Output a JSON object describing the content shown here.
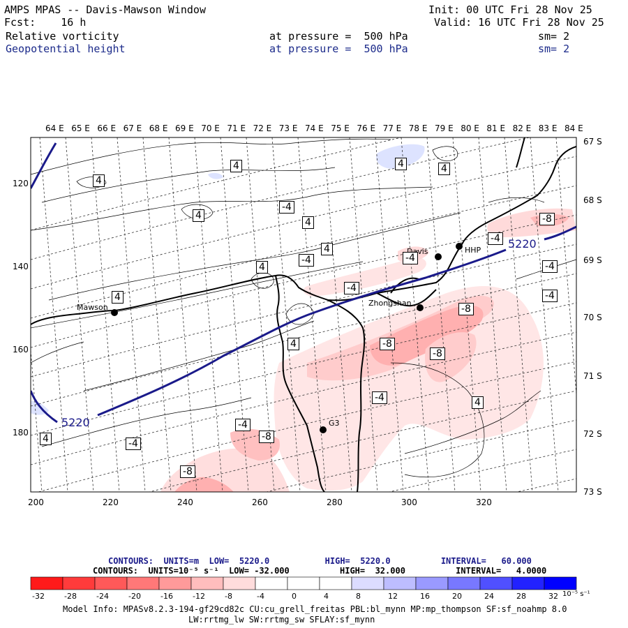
{
  "header": {
    "title": "AMPS MPAS -- Davis-Mawson Window",
    "fcst": "Fcst:    16 h",
    "init": "Init: 00 UTC Fri 28 Nov 25",
    "valid": "Valid: 16 UTC Fri 28 Nov 25",
    "field1": {
      "name": "Relative vorticity",
      "pressure": "at pressure =  500 hPa",
      "sm": "sm= 2"
    },
    "field2": {
      "name": "Geopotential height",
      "pressure": "at pressure =  500 hPa",
      "sm": "sm= 2"
    }
  },
  "axes": {
    "top_labels": [
      "64 E",
      "65 E",
      "66 E",
      "67 E",
      "68 E",
      "69 E",
      "70 E",
      "71 E",
      "72 E",
      "73 E",
      "74 E",
      "75 E",
      "76 E",
      "77 E",
      "78 E",
      "79 E",
      "80 E",
      "81 E",
      "82 E",
      "83 E",
      "84 E"
    ],
    "right_labels": [
      "67 S",
      "68 S",
      "69 S",
      "70 S",
      "71 S",
      "72 S",
      "73 S"
    ],
    "x_ticks": [
      "200",
      "220",
      "240",
      "260",
      "280",
      "300",
      "320"
    ],
    "y_ticks": [
      "120",
      "140",
      "160",
      "180"
    ]
  },
  "stations": [
    {
      "name": "Mawson"
    },
    {
      "name": "Davis"
    },
    {
      "name": "HHP"
    },
    {
      "name": "Zhongshan"
    },
    {
      "name": "G3"
    }
  ],
  "contour_labels": {
    "height": [
      "5220",
      "5220"
    ],
    "vort": [
      "4",
      "4",
      "4",
      "4",
      "4",
      "4",
      "4",
      "4",
      "4",
      "4",
      "-4",
      "-4",
      "-4",
      "-4",
      "-4",
      "-4",
      "-4",
      "-4",
      "-4",
      "-4",
      "-8",
      "-8",
      "-8",
      "-8",
      "-8",
      "-8",
      "4",
      "4"
    ]
  },
  "footer": {
    "contours1": "CONTOURS:  UNITS=m  LOW=  5220.0           HIGH=  5220.0          INTERVAL=   60.000",
    "contours2": "CONTOURS:  UNITS=10⁻⁵ s⁻¹  LOW= -32.000          HIGH=  32.000          INTERVAL=   4.0000",
    "model1": "Model Info: MPASv8.2.3-194-gf29cd82c CU:cu_grell_freitas PBL:bl_mynn MP:mp_thompson SF:sf_noahmp 8.0",
    "model2": "LW:rrtmg_lw SW:rrtmg_sw SFLAY:sf_mynn"
  },
  "colorbar": {
    "labels": [
      "-32",
      "-28",
      "-24",
      "-20",
      "-16",
      "-12",
      "-8",
      "-4",
      "0",
      "4",
      "8",
      "12",
      "16",
      "20",
      "24",
      "28",
      "32"
    ],
    "unit": "10⁻⁵ s⁻¹",
    "colors": [
      "#ff1a1a",
      "#ff3b3b",
      "#ff5959",
      "#ff7878",
      "#ff9a9a",
      "#ffbdbd",
      "#ffdcdc",
      "#ffffff",
      "#ffffff",
      "#ffffff",
      "#dcdcff",
      "#bdbdff",
      "#9a9aff",
      "#7878ff",
      "#5050ff",
      "#2222ff",
      "#0000ff"
    ]
  }
}
